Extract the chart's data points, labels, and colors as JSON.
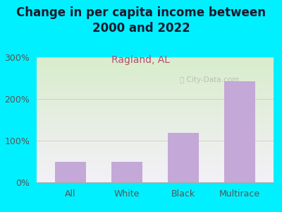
{
  "title": "Change in per capita income between\n2000 and 2022",
  "subtitle": "Ragland, AL",
  "categories": [
    "All",
    "White",
    "Black",
    "Multirace"
  ],
  "values": [
    50,
    50,
    118,
    243
  ],
  "bar_color": "#c4a8d8",
  "background_outer": "#00f0ff",
  "background_plot_topleft": "#d8edcc",
  "background_plot_right": "#f0ecf5",
  "title_fontsize": 12,
  "title_color": "#1a1a2e",
  "subtitle_fontsize": 10,
  "subtitle_color": "#b05070",
  "tick_label_fontsize": 9,
  "tick_color": "#555555",
  "ylim": [
    0,
    300
  ],
  "yticks": [
    0,
    100,
    200,
    300
  ],
  "ytick_labels": [
    "0%",
    "100%",
    "200%",
    "300%"
  ],
  "grid_color": "#e0c8c8",
  "watermark": "City-Data.com"
}
